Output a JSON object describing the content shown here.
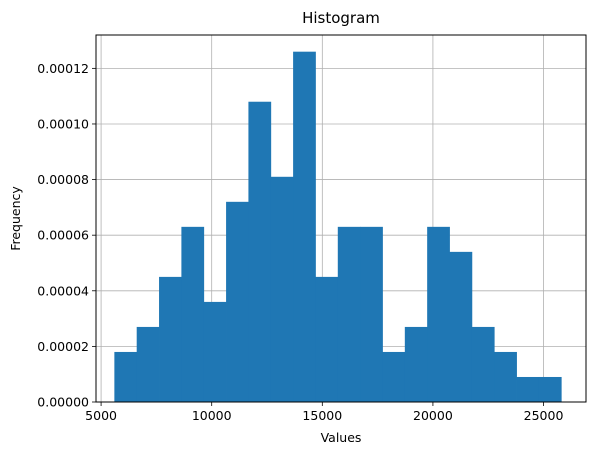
{
  "chart_data": {
    "type": "bar",
    "title": "Histogram",
    "xlabel": "Values",
    "ylabel": "Frequency",
    "xlim": [
      4770,
      26920
    ],
    "ylim": [
      0,
      0.000132
    ],
    "grid": true,
    "bar_color": "#1f77b4",
    "bins": [
      {
        "x0": 5600,
        "x1": 6610,
        "value": 1.8e-05
      },
      {
        "x0": 6610,
        "x1": 7620,
        "value": 2.7e-05
      },
      {
        "x0": 7620,
        "x1": 8630,
        "value": 4.5e-05
      },
      {
        "x0": 8630,
        "x1": 9640,
        "value": 6.3e-05
      },
      {
        "x0": 9640,
        "x1": 10650,
        "value": 3.6e-05
      },
      {
        "x0": 10650,
        "x1": 11660,
        "value": 7.2e-05
      },
      {
        "x0": 11660,
        "x1": 12670,
        "value": 0.000108
      },
      {
        "x0": 12670,
        "x1": 13680,
        "value": 8.1e-05
      },
      {
        "x0": 13680,
        "x1": 14690,
        "value": 0.000126
      },
      {
        "x0": 14690,
        "x1": 15700,
        "value": 4.5e-05
      },
      {
        "x0": 15700,
        "x1": 16710,
        "value": 6.3e-05
      },
      {
        "x0": 16710,
        "x1": 17720,
        "value": 6.3e-05
      },
      {
        "x0": 17720,
        "x1": 18730,
        "value": 1.8e-05
      },
      {
        "x0": 18730,
        "x1": 19740,
        "value": 2.7e-05
      },
      {
        "x0": 19740,
        "x1": 20750,
        "value": 6.3e-05
      },
      {
        "x0": 20750,
        "x1": 21760,
        "value": 5.4e-05
      },
      {
        "x0": 21760,
        "x1": 22770,
        "value": 2.7e-05
      },
      {
        "x0": 22770,
        "x1": 23780,
        "value": 1.8e-05
      },
      {
        "x0": 23780,
        "x1": 24790,
        "value": 9e-06
      },
      {
        "x0": 24790,
        "x1": 25800,
        "value": 9e-06
      }
    ],
    "x_ticks": [
      5000,
      10000,
      15000,
      20000,
      25000
    ],
    "x_tick_labels": [
      "5000",
      "10000",
      "15000",
      "20000",
      "25000"
    ],
    "y_ticks": [
      0,
      2e-05,
      4e-05,
      6e-05,
      8e-05,
      0.0001,
      0.00012
    ],
    "y_tick_labels": [
      "0.00000",
      "0.00002",
      "0.00004",
      "0.00006",
      "0.00008",
      "0.00010",
      "0.00012"
    ]
  }
}
